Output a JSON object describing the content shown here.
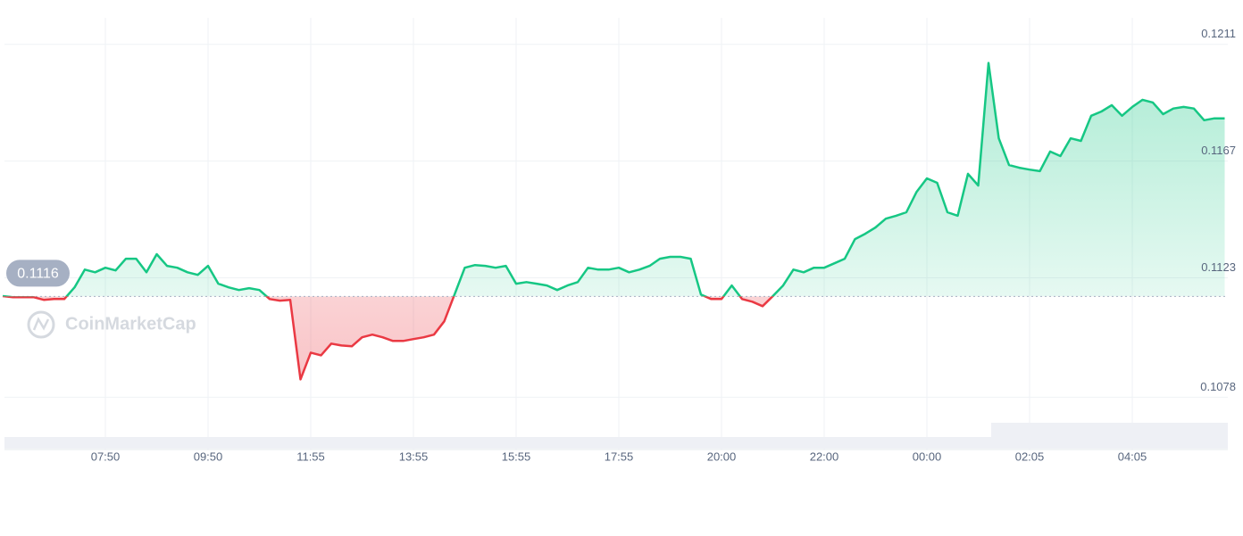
{
  "chart_data": {
    "type": "line",
    "values": [
      0.11161,
      0.11157,
      0.11157,
      0.11157,
      0.11147,
      0.1115,
      0.1115,
      0.11194,
      0.11261,
      0.11251,
      0.11268,
      0.11258,
      0.11302,
      0.11302,
      0.11251,
      0.11319,
      0.11275,
      0.11268,
      0.11251,
      0.11241,
      0.11275,
      0.11208,
      0.11194,
      0.11184,
      0.11191,
      0.11184,
      0.1115,
      0.11144,
      0.11147,
      0.10847,
      0.10948,
      0.10938,
      0.10982,
      0.10975,
      0.10972,
      0.11006,
      0.11016,
      0.11006,
      0.10992,
      0.10992,
      0.10999,
      0.11006,
      0.11016,
      0.11066,
      0.11167,
      0.11268,
      0.11278,
      0.11275,
      0.11268,
      0.11275,
      0.11208,
      0.11214,
      0.11208,
      0.11201,
      0.11184,
      0.11201,
      0.11214,
      0.11268,
      0.11261,
      0.11261,
      0.11268,
      0.11251,
      0.11261,
      0.11275,
      0.11302,
      0.11309,
      0.11309,
      0.11302,
      0.11167,
      0.1115,
      0.1115,
      0.11201,
      0.1115,
      0.1114,
      0.11123,
      0.11161,
      0.11201,
      0.11261,
      0.11251,
      0.11268,
      0.11268,
      0.11285,
      0.11302,
      0.11376,
      0.11396,
      0.1142,
      0.11453,
      0.11464,
      0.11477,
      0.11554,
      0.11605,
      0.11588,
      0.11477,
      0.11464,
      0.11622,
      0.11578,
      0.1204,
      0.11756,
      0.11655,
      0.11645,
      0.11638,
      0.11632,
      0.11706,
      0.11689,
      0.11756,
      0.11746,
      0.11841,
      0.11857,
      0.11881,
      0.11841,
      0.11874,
      0.11901,
      0.11891,
      0.11847,
      0.11868,
      0.11874,
      0.11868,
      0.11824,
      0.11831,
      0.11831
    ],
    "up_color": "#16c784",
    "down_color": "#ea3943",
    "reference_value": 0.1116,
    "xlim": [
      0,
      119
    ],
    "xticks": [
      {
        "value": 10,
        "label": "07:50"
      },
      {
        "value": 20,
        "label": "09:50"
      },
      {
        "value": 30,
        "label": "11:55"
      },
      {
        "value": 40,
        "label": "13:55"
      },
      {
        "value": 50,
        "label": "15:55"
      },
      {
        "value": 60,
        "label": "17:55"
      },
      {
        "value": 70,
        "label": "20:00"
      },
      {
        "value": 80,
        "label": "22:00"
      },
      {
        "value": 90,
        "label": "00:00"
      },
      {
        "value": 100,
        "label": "02:05"
      },
      {
        "value": 110,
        "label": "04:05"
      }
    ],
    "ylim": [
      0.1063,
      0.1221
    ],
    "yticks": [
      0.1211,
      0.1167,
      0.1123,
      0.1078
    ],
    "grid": true,
    "watermark": "CoinMarketCap"
  }
}
